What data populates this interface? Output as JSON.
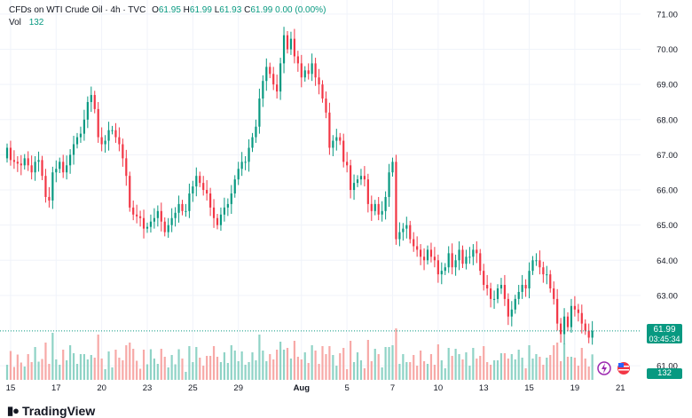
{
  "header": {
    "symbol_title": "CFDs on WTI Crude Oil · 4h · TVC",
    "ohlc": [
      {
        "label": "O",
        "value": "61.95"
      },
      {
        "label": "H",
        "value": "61.99"
      },
      {
        "label": "L",
        "value": "61.93"
      },
      {
        "label": "C",
        "value": "61.99"
      }
    ],
    "change": "0.00 (0.00%)",
    "vol_label": "Vol",
    "vol_value": "132"
  },
  "price_tag": {
    "price": "61.99",
    "countdown": "03:45:34"
  },
  "volume_tag": "132",
  "brand": {
    "name": "TradingView",
    "icon": "tradingview-logo-icon"
  },
  "icons": {
    "flash": "flash-icon",
    "flag": "us-flag-icon"
  },
  "colors": {
    "up": "#089981",
    "down": "#f23645",
    "up_vol": "#8fd3c6",
    "down_vol": "#f7a9a7"
  },
  "chart_data": {
    "type": "candlestick",
    "title": "CFDs on WTI Crude Oil · 4h · TVC",
    "ylim": [
      60.6,
      71.2
    ],
    "y_ticks": [
      "71.00",
      "70.00",
      "69.00",
      "68.00",
      "67.00",
      "66.00",
      "65.00",
      "64.00",
      "63.00",
      "61.00"
    ],
    "x_ticks": [
      {
        "label": "15",
        "index": 1
      },
      {
        "label": "17",
        "index": 14
      },
      {
        "label": "20",
        "index": 27
      },
      {
        "label": "23",
        "index": 40
      },
      {
        "label": "25",
        "index": 53
      },
      {
        "label": "29",
        "index": 66
      },
      {
        "label": "Aug",
        "index": 84
      },
      {
        "label": "5",
        "index": 97
      },
      {
        "label": "7",
        "index": 110
      },
      {
        "label": "10",
        "index": 123
      },
      {
        "label": "13",
        "index": 136
      },
      {
        "label": "15",
        "index": 149
      },
      {
        "label": "19",
        "index": 162
      },
      {
        "label": "21",
        "index": 175
      }
    ],
    "last_price": 61.99,
    "close": [
      67.2,
      66.85,
      66.8,
      66.75,
      66.7,
      66.9,
      66.7,
      66.5,
      66.8,
      66.85,
      66.4,
      65.8,
      65.7,
      66.5,
      66.6,
      66.8,
      66.5,
      66.7,
      67.0,
      67.3,
      67.5,
      67.6,
      68.0,
      68.5,
      68.7,
      68.3,
      67.5,
      67.3,
      67.4,
      67.7,
      67.7,
      67.5,
      67.3,
      66.9,
      66.4,
      65.5,
      65.3,
      65.25,
      65.2,
      64.9,
      64.95,
      65.1,
      65.2,
      65.4,
      65.1,
      64.8,
      65.0,
      65.2,
      65.35,
      65.6,
      65.4,
      65.4,
      65.9,
      66.1,
      66.4,
      66.2,
      66.0,
      65.9,
      65.5,
      65.2,
      65.0,
      65.3,
      65.5,
      65.6,
      65.9,
      66.3,
      66.6,
      66.8,
      66.8,
      67.2,
      67.5,
      67.8,
      68.6,
      69.1,
      69.5,
      69.3,
      69.0,
      68.8,
      69.6,
      70.4,
      70.0,
      70.3,
      69.8,
      69.6,
      69.2,
      69.4,
      69.3,
      69.6,
      69.2,
      69.0,
      68.6,
      68.2,
      67.2,
      67.4,
      67.5,
      67.4,
      66.8,
      66.7,
      66.0,
      66.2,
      66.3,
      66.4,
      66.3,
      65.6,
      65.4,
      65.6,
      65.3,
      65.4,
      65.8,
      66.5,
      66.8,
      64.6,
      64.8,
      64.9,
      65.0,
      64.6,
      64.4,
      64.3,
      64.1,
      64.0,
      64.3,
      64.1,
      64.0,
      63.6,
      63.7,
      63.8,
      64.2,
      63.8,
      64.0,
      64.3,
      63.9,
      64.1,
      64.1,
      64.3,
      64.2,
      63.7,
      63.3,
      63.2,
      62.9,
      62.9,
      63.2,
      63.3,
      62.9,
      62.4,
      62.6,
      62.9,
      63.1,
      63.3,
      63.2,
      63.7,
      64.0,
      64.0,
      63.8,
      63.6,
      63.6,
      63.2,
      62.9,
      62.2,
      61.9,
      62.4,
      62.1,
      62.7,
      62.6,
      62.5,
      62.2,
      62.0,
      61.8,
      61.99
    ]
  }
}
